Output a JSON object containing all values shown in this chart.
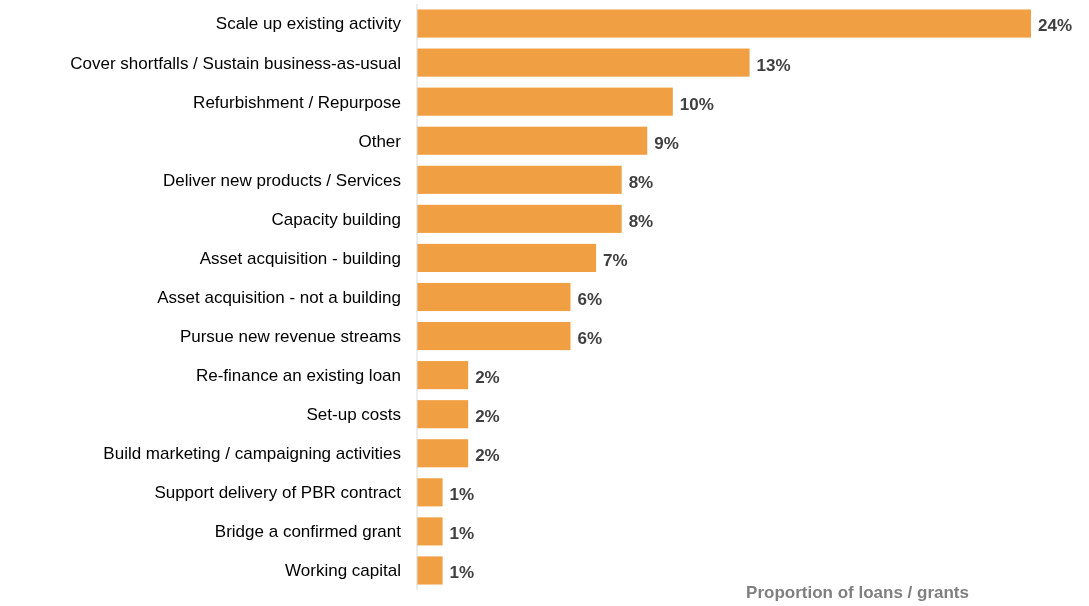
{
  "chart_data": {
    "type": "bar",
    "orientation": "horizontal",
    "xlabel": "Proportion of loans / grants",
    "categories": [
      "Scale up existing activity",
      "Cover shortfalls / Sustain business-as-usual",
      "Refurbishment / Repurpose",
      "Other",
      "Deliver new products / Services",
      "Capacity building",
      "Asset acquisition - building",
      "Asset acquisition - not a building",
      "Pursue new revenue streams",
      "Re-finance an existing loan",
      "Set-up costs",
      "Build marketing / campaigning activities",
      "Support delivery of PBR contract",
      "Bridge a confirmed grant",
      "Working capital"
    ],
    "values": [
      24,
      13,
      10,
      9,
      8,
      8,
      7,
      6,
      6,
      2,
      2,
      2,
      1,
      1,
      1
    ],
    "value_labels": [
      "24%",
      "13%",
      "10%",
      "9%",
      "8%",
      "8%",
      "7%",
      "6%",
      "6%",
      "2%",
      "2%",
      "2%",
      "1%",
      "1%",
      "1%"
    ],
    "color": "#f0a043"
  }
}
